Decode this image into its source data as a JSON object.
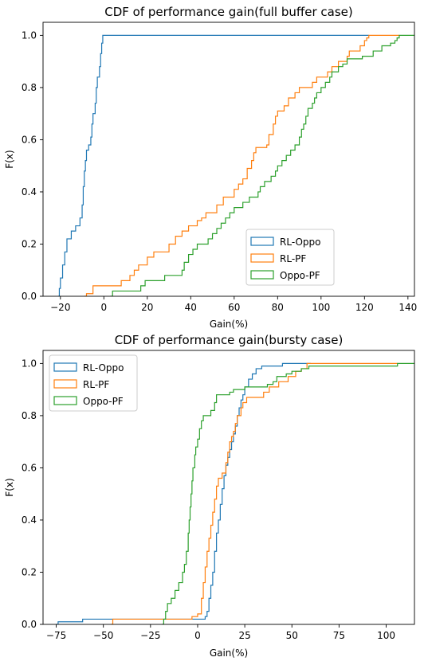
{
  "chart_data": [
    {
      "type": "step",
      "title": "CDF of performance gain(full buffer case)",
      "xlabel": "Gain(%)",
      "ylabel": "F(x)",
      "xlim": [
        -28,
        143
      ],
      "ylim": [
        0,
        1.05
      ],
      "xticks": [
        -20,
        0,
        20,
        40,
        60,
        80,
        100,
        120,
        140
      ],
      "yticks": [
        0.0,
        0.2,
        0.4,
        0.6,
        0.8,
        1.0
      ],
      "xtick_labels": [
        "−20",
        "0",
        "20",
        "40",
        "60",
        "80",
        "100",
        "120",
        "140"
      ],
      "ytick_labels": [
        "0.0",
        "0.2",
        "0.4",
        "0.6",
        "0.8",
        "1.0"
      ],
      "legend_position": "lower-center",
      "legend_labels": [
        "RL-Oppo",
        "RL-PF",
        "Oppo-PF"
      ],
      "series": [
        {
          "name": "RL-Oppo",
          "color": "#1f77b4",
          "points": [
            [
              -21,
              0
            ],
            [
              -20.5,
              0.03
            ],
            [
              -20,
              0.07
            ],
            [
              -19,
              0.12
            ],
            [
              -18,
              0.17
            ],
            [
              -17,
              0.22
            ],
            [
              -15,
              0.25
            ],
            [
              -13,
              0.27
            ],
            [
              -11,
              0.3
            ],
            [
              -10,
              0.35
            ],
            [
              -9.5,
              0.42
            ],
            [
              -9,
              0.48
            ],
            [
              -8.5,
              0.52
            ],
            [
              -8,
              0.56
            ],
            [
              -7,
              0.58
            ],
            [
              -6,
              0.61
            ],
            [
              -5.5,
              0.66
            ],
            [
              -5,
              0.7
            ],
            [
              -4,
              0.74
            ],
            [
              -3.5,
              0.8
            ],
            [
              -3,
              0.84
            ],
            [
              -2,
              0.88
            ],
            [
              -1.5,
              0.93
            ],
            [
              -1,
              0.97
            ],
            [
              -0.5,
              1.0
            ],
            [
              122,
              1.0
            ]
          ]
        },
        {
          "name": "RL-PF",
          "color": "#ff7f0e",
          "points": [
            [
              -9,
              0
            ],
            [
              -8,
              0.01
            ],
            [
              -5,
              0.04
            ],
            [
              8,
              0.06
            ],
            [
              12,
              0.08
            ],
            [
              14,
              0.1
            ],
            [
              16,
              0.12
            ],
            [
              20,
              0.15
            ],
            [
              23,
              0.17
            ],
            [
              30,
              0.2
            ],
            [
              33,
              0.23
            ],
            [
              36,
              0.25
            ],
            [
              39,
              0.27
            ],
            [
              43,
              0.29
            ],
            [
              45,
              0.3
            ],
            [
              47,
              0.32
            ],
            [
              52,
              0.35
            ],
            [
              55,
              0.38
            ],
            [
              60,
              0.41
            ],
            [
              62,
              0.43
            ],
            [
              64,
              0.45
            ],
            [
              66,
              0.49
            ],
            [
              68,
              0.52
            ],
            [
              69,
              0.55
            ],
            [
              70,
              0.57
            ],
            [
              75,
              0.58
            ],
            [
              76,
              0.62
            ],
            [
              78,
              0.66
            ],
            [
              79,
              0.69
            ],
            [
              80,
              0.71
            ],
            [
              83,
              0.73
            ],
            [
              85,
              0.76
            ],
            [
              88,
              0.78
            ],
            [
              90,
              0.8
            ],
            [
              96,
              0.82
            ],
            [
              98,
              0.84
            ],
            [
              103,
              0.86
            ],
            [
              105,
              0.88
            ],
            [
              108,
              0.9
            ],
            [
              112,
              0.92
            ],
            [
              113,
              0.94
            ],
            [
              118,
              0.96
            ],
            [
              120,
              0.98
            ],
            [
              121,
              0.99
            ],
            [
              122,
              1.0
            ],
            [
              136,
              1.0
            ]
          ]
        },
        {
          "name": "Oppo-PF",
          "color": "#2ca02c",
          "points": [
            [
              3,
              0
            ],
            [
              4,
              0.02
            ],
            [
              17,
              0.04
            ],
            [
              19,
              0.06
            ],
            [
              28,
              0.08
            ],
            [
              36,
              0.1
            ],
            [
              37,
              0.13
            ],
            [
              39,
              0.16
            ],
            [
              41,
              0.18
            ],
            [
              43,
              0.2
            ],
            [
              48,
              0.22
            ],
            [
              50,
              0.24
            ],
            [
              52,
              0.26
            ],
            [
              54,
              0.28
            ],
            [
              56,
              0.3
            ],
            [
              58,
              0.32
            ],
            [
              60,
              0.34
            ],
            [
              64,
              0.36
            ],
            [
              67,
              0.38
            ],
            [
              71,
              0.4
            ],
            [
              72,
              0.42
            ],
            [
              74,
              0.44
            ],
            [
              77,
              0.46
            ],
            [
              79,
              0.48
            ],
            [
              80,
              0.5
            ],
            [
              82,
              0.52
            ],
            [
              84,
              0.54
            ],
            [
              86,
              0.56
            ],
            [
              88,
              0.58
            ],
            [
              90,
              0.61
            ],
            [
              91,
              0.64
            ],
            [
              92,
              0.66
            ],
            [
              93,
              0.69
            ],
            [
              94,
              0.72
            ],
            [
              96,
              0.74
            ],
            [
              97,
              0.76
            ],
            [
              98,
              0.78
            ],
            [
              100,
              0.8
            ],
            [
              102,
              0.82
            ],
            [
              104,
              0.84
            ],
            [
              105,
              0.86
            ],
            [
              108,
              0.88
            ],
            [
              110,
              0.89
            ],
            [
              112,
              0.91
            ],
            [
              119,
              0.92
            ],
            [
              124,
              0.94
            ],
            [
              128,
              0.96
            ],
            [
              132,
              0.97
            ],
            [
              134,
              0.98
            ],
            [
              135,
              0.99
            ],
            [
              136,
              1.0
            ],
            [
              143,
              1.0
            ]
          ]
        }
      ]
    },
    {
      "type": "step",
      "title": "CDF of performance gain(bursty case)",
      "xlabel": "Gain(%)",
      "ylabel": "F(x)",
      "xlim": [
        -82,
        115
      ],
      "ylim": [
        0,
        1.05
      ],
      "xticks": [
        -75,
        -50,
        -25,
        0,
        25,
        50,
        75,
        100
      ],
      "yticks": [
        0.0,
        0.2,
        0.4,
        0.6,
        0.8,
        1.0
      ],
      "xtick_labels": [
        "−75",
        "−50",
        "−25",
        "0",
        "25",
        "50",
        "75",
        "100"
      ],
      "ytick_labels": [
        "0.0",
        "0.2",
        "0.4",
        "0.6",
        "0.8",
        "1.0"
      ],
      "legend_position": "upper-left",
      "legend_labels": [
        "RL-Oppo",
        "RL-PF",
        "Oppo-PF"
      ],
      "series": [
        {
          "name": "RL-Oppo",
          "color": "#1f77b4",
          "points": [
            [
              -75,
              0
            ],
            [
              -74,
              0.01
            ],
            [
              -61,
              0.02
            ],
            [
              -46,
              0.02
            ],
            [
              4,
              0.03
            ],
            [
              5,
              0.05
            ],
            [
              6,
              0.1
            ],
            [
              7,
              0.15
            ],
            [
              8,
              0.2
            ],
            [
              9,
              0.28
            ],
            [
              10,
              0.35
            ],
            [
              11,
              0.4
            ],
            [
              12,
              0.46
            ],
            [
              13,
              0.52
            ],
            [
              14,
              0.57
            ],
            [
              15,
              0.61
            ],
            [
              16,
              0.64
            ],
            [
              17,
              0.67
            ],
            [
              18,
              0.7
            ],
            [
              19,
              0.73
            ],
            [
              20,
              0.76
            ],
            [
              21,
              0.8
            ],
            [
              22,
              0.83
            ],
            [
              23,
              0.86
            ],
            [
              24,
              0.88
            ],
            [
              25,
              0.91
            ],
            [
              27,
              0.94
            ],
            [
              29,
              0.96
            ],
            [
              31,
              0.98
            ],
            [
              34,
              0.99
            ],
            [
              45,
              1.0
            ],
            [
              60,
              1.0
            ]
          ]
        },
        {
          "name": "RL-PF",
          "color": "#ff7f0e",
          "points": [
            [
              -46,
              0
            ],
            [
              -45,
              0.02
            ],
            [
              -3,
              0.03
            ],
            [
              0,
              0.04
            ],
            [
              2,
              0.1
            ],
            [
              3,
              0.16
            ],
            [
              4,
              0.22
            ],
            [
              5,
              0.28
            ],
            [
              6,
              0.33
            ],
            [
              7,
              0.38
            ],
            [
              8,
              0.43
            ],
            [
              9,
              0.48
            ],
            [
              10,
              0.53
            ],
            [
              11,
              0.56
            ],
            [
              13,
              0.58
            ],
            [
              15,
              0.62
            ],
            [
              16,
              0.66
            ],
            [
              17,
              0.7
            ],
            [
              18,
              0.72
            ],
            [
              19,
              0.74
            ],
            [
              20,
              0.77
            ],
            [
              21,
              0.8
            ],
            [
              23,
              0.83
            ],
            [
              24,
              0.85
            ],
            [
              26,
              0.87
            ],
            [
              35,
              0.89
            ],
            [
              38,
              0.91
            ],
            [
              43,
              0.93
            ],
            [
              48,
              0.95
            ],
            [
              52,
              0.97
            ],
            [
              55,
              0.98
            ],
            [
              58,
              1.0
            ],
            [
              106,
              1.0
            ]
          ]
        },
        {
          "name": "Oppo-PF",
          "color": "#2ca02c",
          "points": [
            [
              -19,
              0
            ],
            [
              -18,
              0.02
            ],
            [
              -17,
              0.05
            ],
            [
              -16,
              0.08
            ],
            [
              -14,
              0.1
            ],
            [
              -12,
              0.13
            ],
            [
              -10,
              0.16
            ],
            [
              -8,
              0.2
            ],
            [
              -7,
              0.23
            ],
            [
              -6,
              0.28
            ],
            [
              -5,
              0.35
            ],
            [
              -4.5,
              0.4
            ],
            [
              -4,
              0.45
            ],
            [
              -3.5,
              0.5
            ],
            [
              -3,
              0.55
            ],
            [
              -2.5,
              0.6
            ],
            [
              -1.5,
              0.65
            ],
            [
              -1,
              0.68
            ],
            [
              0,
              0.71
            ],
            [
              1,
              0.75
            ],
            [
              2,
              0.78
            ],
            [
              3,
              0.8
            ],
            [
              7,
              0.82
            ],
            [
              9,
              0.85
            ],
            [
              10,
              0.88
            ],
            [
              17,
              0.89
            ],
            [
              19,
              0.9
            ],
            [
              25,
              0.91
            ],
            [
              37,
              0.92
            ],
            [
              40,
              0.93
            ],
            [
              42,
              0.95
            ],
            [
              47,
              0.96
            ],
            [
              50,
              0.97
            ],
            [
              55,
              0.98
            ],
            [
              59,
              0.99
            ],
            [
              106,
              1.0
            ],
            [
              115,
              1.0
            ]
          ]
        }
      ]
    }
  ]
}
